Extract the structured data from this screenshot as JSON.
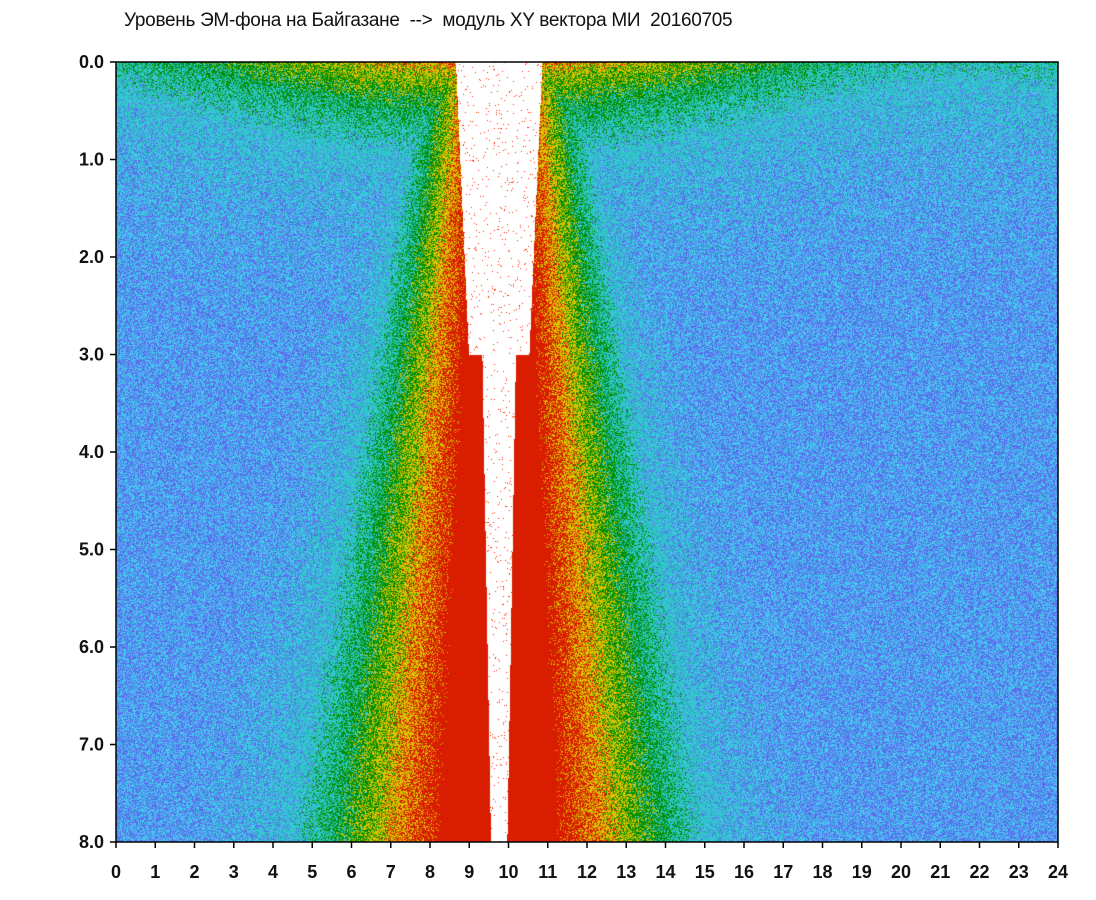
{
  "chart_data": {
    "type": "heatmap",
    "title": "Уровень ЭМ-фона на Байгазане  -->  модуль XY вектора МИ  20160705",
    "x_ticks": [
      "0",
      "1",
      "2",
      "3",
      "4",
      "5",
      "6",
      "7",
      "8",
      "9",
      "10",
      "11",
      "12",
      "13",
      "14",
      "15",
      "16",
      "17",
      "18",
      "19",
      "20",
      "21",
      "22",
      "23",
      "24"
    ],
    "y_ticks": [
      "0.0",
      "1.0",
      "2.0",
      "3.0",
      "4.0",
      "5.0",
      "6.0",
      "7.0",
      "8.0"
    ],
    "xlim": [
      0,
      24
    ],
    "ylim": [
      0,
      8
    ],
    "y_inverted": true,
    "grid": false,
    "colors": [
      "#ff2200",
      "#ffe400",
      "#00a800",
      "#35e6e6",
      "#3030e0"
    ],
    "noon_gap_hours": [
      9.55,
      9.95
    ]
  }
}
